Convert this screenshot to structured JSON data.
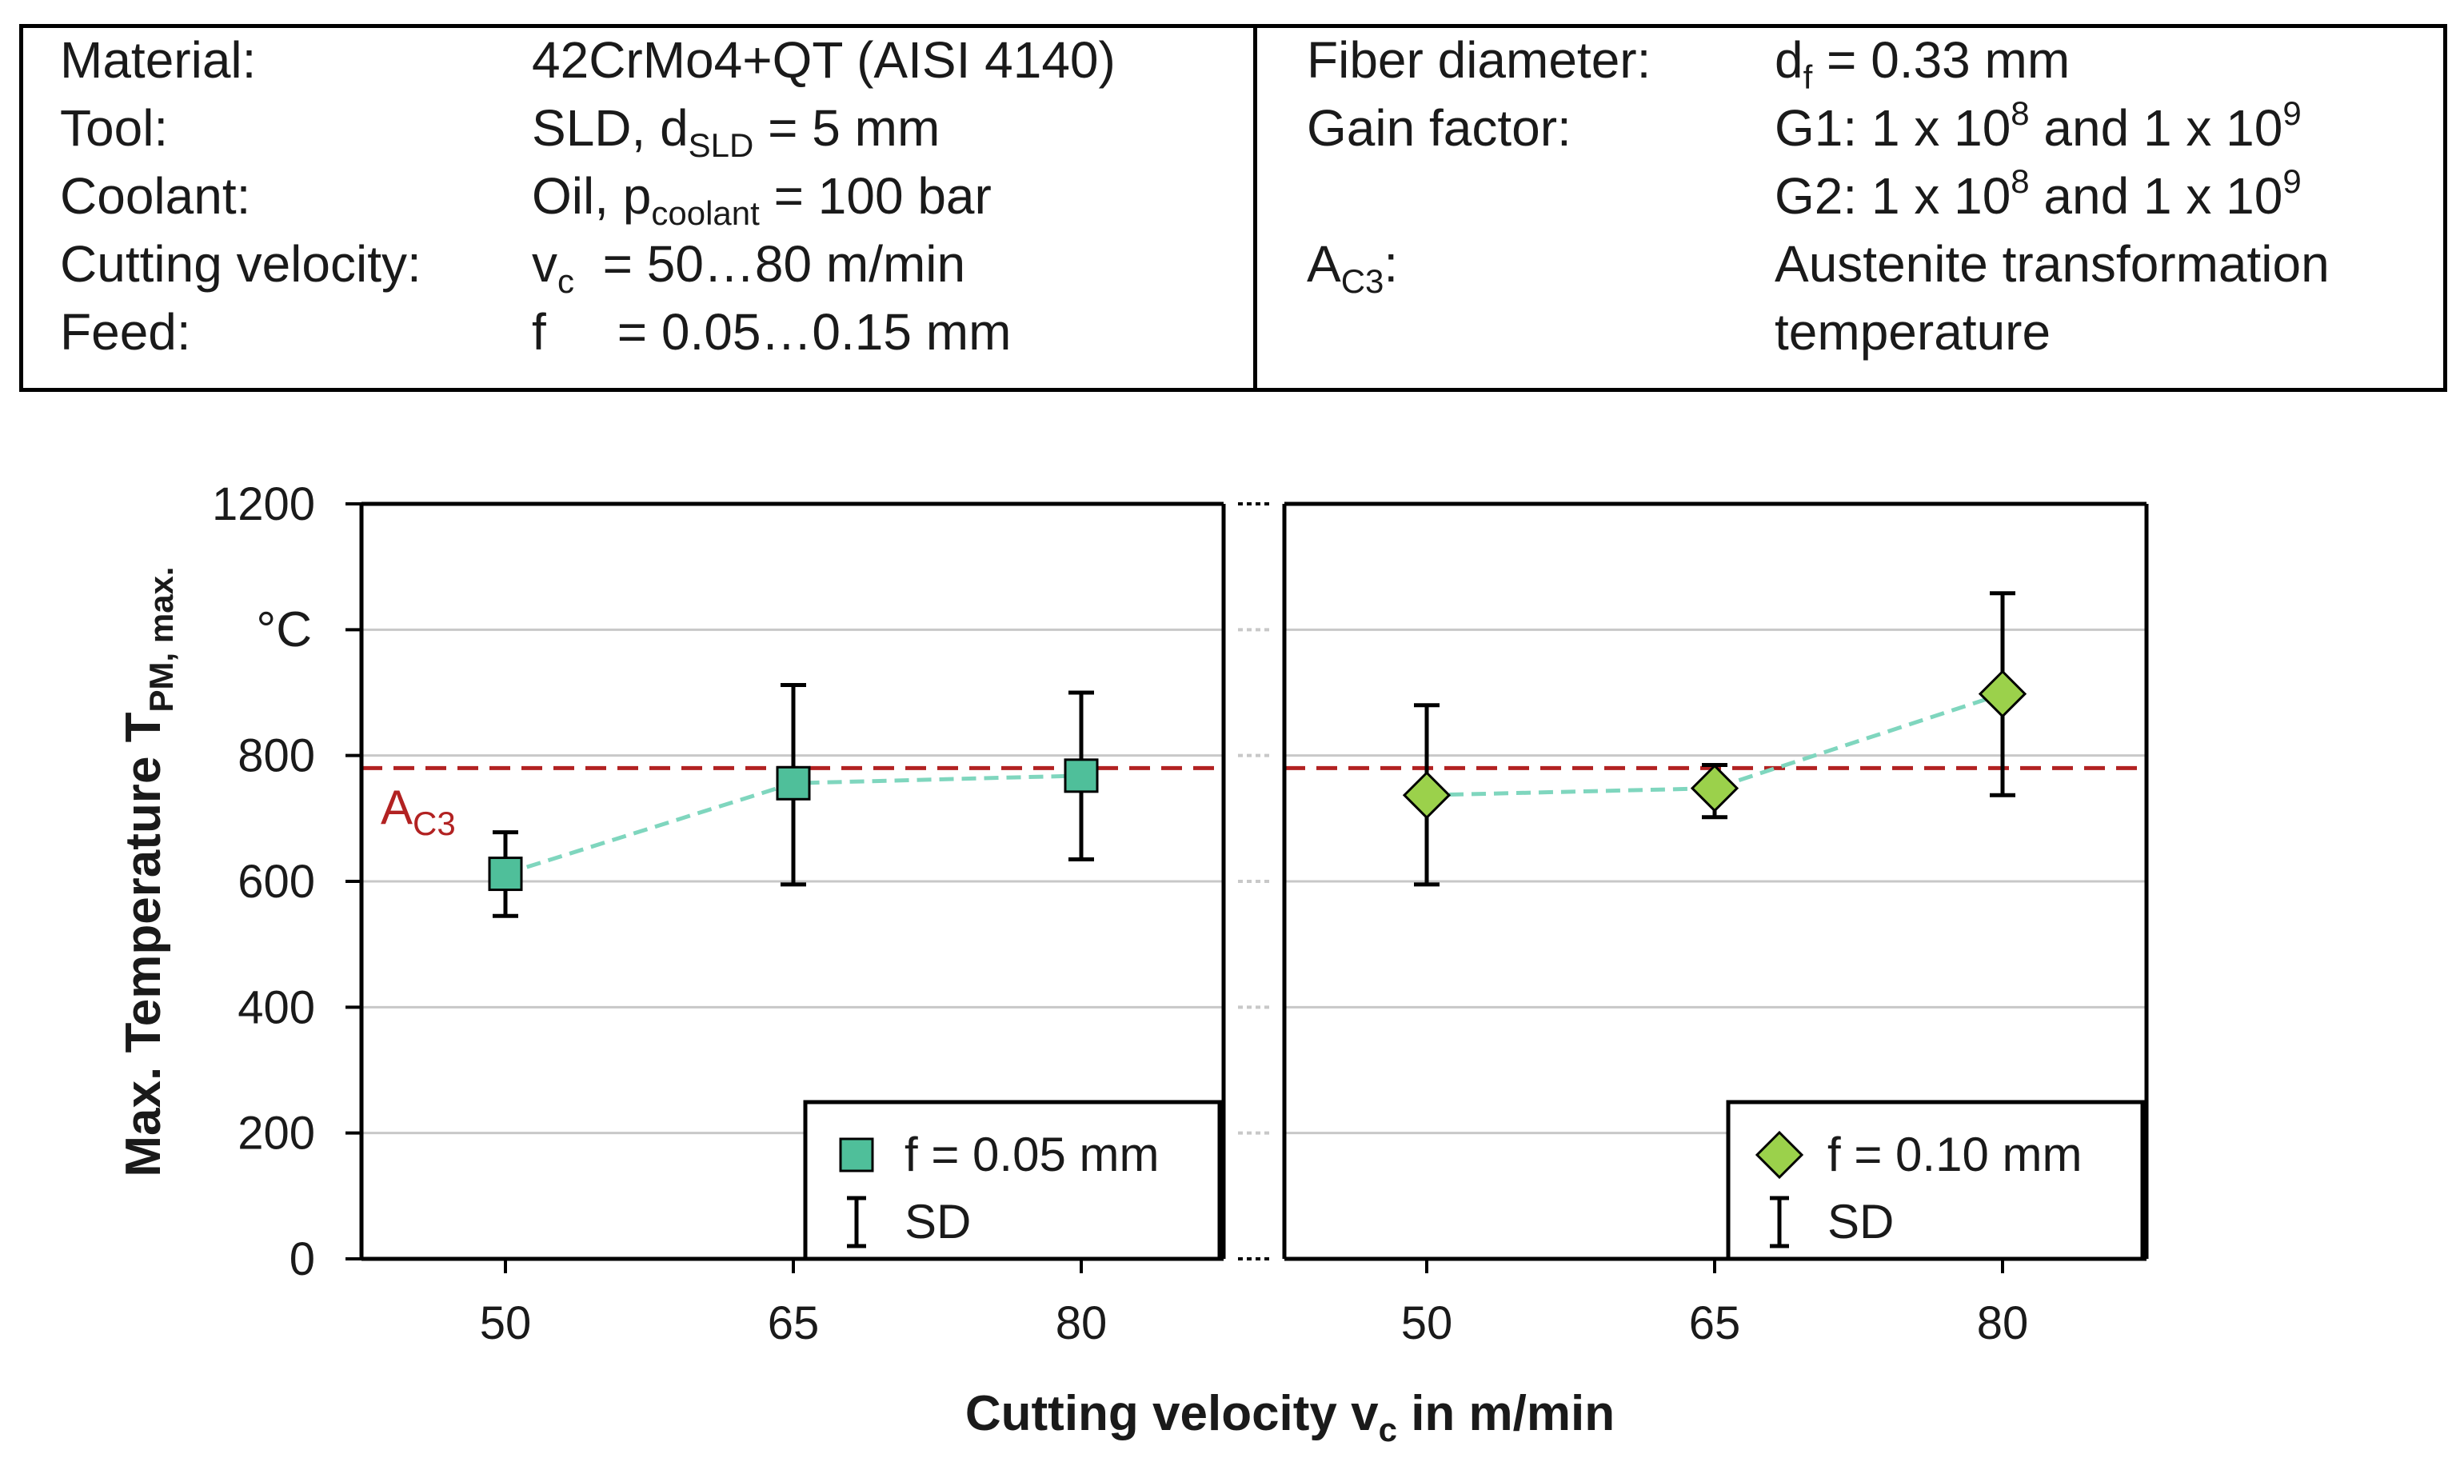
{
  "info": {
    "left": [
      {
        "label": "Material:",
        "value": "42CrMo4+QT (AISI 4140)"
      },
      {
        "label": "Tool:",
        "value_pre": "SLD, d",
        "value_sub": "SLD",
        "value_post": " = 5 mm"
      },
      {
        "label": "Coolant:",
        "value_pre": "Oil, p",
        "value_sub": "coolant",
        "value_post": " = 100 bar"
      },
      {
        "label": "Cutting velocity:",
        "value_pre": "v",
        "value_sub": "c",
        "value_post": "  = 50…80 m/min"
      },
      {
        "label": "Feed:",
        "value": "f     = 0.05…0.15 mm"
      }
    ],
    "right": {
      "fiber_label": "Fiber diameter:",
      "fiber_pre": "d",
      "fiber_sub": "f",
      "fiber_post": " = 0.33 mm",
      "gain_label": "Gain factor:",
      "g1_pre": "G1: 1 x 10",
      "g1_exp1": "8",
      "g1_mid": " and 1 x 10",
      "g1_exp2": "9",
      "g2_pre": "G2: 1 x 10",
      "g2_exp1": "8",
      "g2_mid": " and 1 x 10",
      "g2_exp2": "9",
      "ac3_pre": "A",
      "ac3_sub": "C3",
      "ac3_colon": ":",
      "ac3_desc_1": "Austenite transformation",
      "ac3_desc_2": "temperature"
    }
  },
  "chart_data": {
    "type": "scatter",
    "ylabel_main": "Max. Temperature T",
    "ylabel_sub": "PM, max.",
    "y_unit": "°C",
    "ylim": [
      0,
      1200
    ],
    "yticks": [
      "0",
      "200",
      "400",
      "600",
      "800",
      "1000",
      "1200"
    ],
    "yticks_shown": [
      "0",
      "200",
      "400",
      "600",
      "800",
      "",
      "1200"
    ],
    "xlabel_pre": "Cutting velocity v",
    "xlabel_sub": "c",
    "xlabel_post": " in m/min",
    "categories": [
      "50",
      "65",
      "80"
    ],
    "reference_line": {
      "value": 780,
      "label": "A",
      "label_sub": "C3",
      "color": "#b22222"
    },
    "grid": true,
    "panels": [
      {
        "name": "f = 0.05 mm",
        "marker": "square",
        "color": "#4fbf9a",
        "values": [
          612,
          756,
          768
        ],
        "error_low": [
          545,
          595,
          635
        ],
        "error_high": [
          678,
          912,
          900
        ],
        "legend_series": "f = 0.05 mm",
        "legend_sd": "SD"
      },
      {
        "name": "f = 0.10 mm",
        "marker": "diamond",
        "color": "#9bd14b",
        "values": [
          737,
          748,
          898
        ],
        "error_low": [
          595,
          702,
          737
        ],
        "error_high": [
          880,
          785,
          1058
        ],
        "legend_series": "f = 0.10 mm",
        "legend_sd": "SD"
      }
    ]
  }
}
